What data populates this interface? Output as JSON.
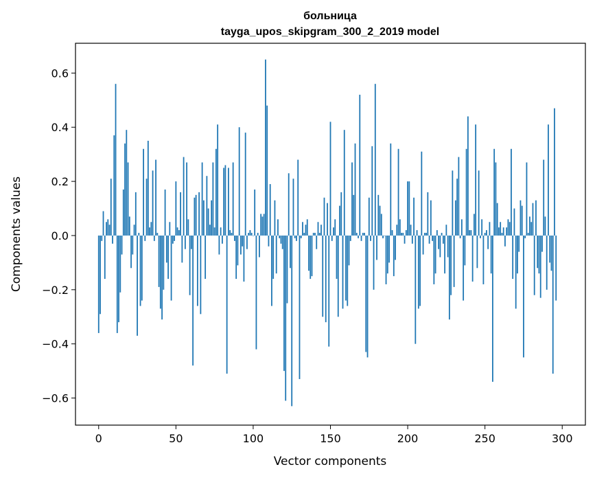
{
  "chart_data": {
    "type": "bar",
    "title": "больница",
    "subtitle": "tayga_upos_skipgram_300_2_2019 model",
    "xlabel": "Vector components",
    "ylabel": "Components values",
    "xlim": [
      -15,
      315
    ],
    "ylim": [
      -0.7,
      0.71
    ],
    "xticks": [
      0,
      50,
      100,
      150,
      200,
      250,
      300
    ],
    "xtick_labels": [
      "0",
      "50",
      "100",
      "150",
      "200",
      "250",
      "300"
    ],
    "yticks": [
      -0.6,
      -0.4,
      -0.2,
      0.0,
      0.2,
      0.4,
      0.6
    ],
    "ytick_labels": [
      "−0.6",
      "−0.4",
      "−0.2",
      "0.0",
      "0.2",
      "0.4",
      "0.6"
    ],
    "grid": false,
    "bar_color": "#1f77b4",
    "values": [
      -0.36,
      -0.29,
      -0.02,
      0.09,
      -0.16,
      0.05,
      0.06,
      0.04,
      0.21,
      -0.03,
      0.37,
      0.56,
      -0.36,
      -0.32,
      -0.21,
      -0.07,
      0.17,
      0.34,
      0.39,
      0.27,
      0.07,
      -0.12,
      -0.07,
      0.04,
      0.16,
      -0.37,
      0.01,
      -0.26,
      -0.24,
      0.32,
      -0.02,
      0.21,
      0.35,
      0.03,
      0.05,
      0.24,
      -0.02,
      0.28,
      0.01,
      -0.19,
      -0.27,
      -0.31,
      -0.2,
      0.17,
      -0.1,
      -0.16,
      0.05,
      -0.24,
      -0.03,
      -0.02,
      0.2,
      0.03,
      0.02,
      0.16,
      -0.1,
      0.29,
      -0.05,
      0.27,
      0.06,
      -0.22,
      -0.05,
      -0.48,
      0.14,
      0.15,
      -0.26,
      0.16,
      -0.29,
      0.27,
      0.13,
      -0.16,
      0.22,
      0.1,
      0.04,
      0.13,
      0.27,
      0.03,
      0.32,
      0.41,
      -0.07,
      0.03,
      -0.03,
      0.25,
      0.26,
      -0.51,
      0.25,
      0.02,
      0.01,
      0.27,
      -0.02,
      -0.16,
      -0.11,
      0.4,
      -0.07,
      -0.04,
      -0.17,
      0.38,
      -0.05,
      0.01,
      0.02,
      0.01,
      0.0,
      0.17,
      -0.42,
      0.01,
      -0.08,
      0.08,
      0.07,
      0.08,
      0.65,
      0.48,
      -0.04,
      0.19,
      -0.26,
      -0.16,
      0.13,
      -0.14,
      0.06,
      -0.01,
      -0.03,
      -0.05,
      -0.5,
      -0.61,
      -0.25,
      0.23,
      -0.12,
      -0.63,
      0.21,
      -0.01,
      -0.02,
      0.28,
      -0.53,
      -0.01,
      0.05,
      0.01,
      0.04,
      0.06,
      -0.13,
      -0.16,
      -0.15,
      0.01,
      0.01,
      -0.05,
      0.05,
      0.01,
      0.04,
      -0.3,
      0.14,
      -0.32,
      0.12,
      -0.41,
      0.42,
      -0.02,
      0.03,
      0.06,
      -0.16,
      -0.3,
      0.11,
      0.16,
      -0.27,
      0.39,
      -0.24,
      -0.26,
      -0.11,
      -0.02,
      0.27,
      0.15,
      0.34,
      0.01,
      -0.01,
      0.52,
      -0.02,
      0.01,
      0.01,
      -0.43,
      -0.45,
      0.14,
      -0.02,
      0.33,
      -0.2,
      0.56,
      -0.09,
      0.15,
      0.11,
      0.08,
      -0.01,
      0.0,
      -0.18,
      -0.14,
      -0.1,
      0.34,
      0.02,
      -0.15,
      -0.09,
      0.04,
      0.32,
      0.06,
      0.01,
      0.01,
      -0.03,
      0.02,
      0.2,
      0.2,
      0.04,
      -0.03,
      0.14,
      -0.4,
      0.02,
      -0.27,
      -0.26,
      0.31,
      -0.07,
      0.01,
      0.01,
      0.16,
      -0.03,
      0.13,
      -0.02,
      -0.18,
      -0.14,
      0.02,
      -0.05,
      -0.08,
      0.01,
      -0.03,
      -0.14,
      0.04,
      -0.08,
      -0.31,
      -0.22,
      0.24,
      -0.19,
      0.13,
      0.21,
      0.29,
      -0.01,
      0.06,
      -0.24,
      -0.11,
      0.32,
      0.44,
      0.02,
      0.02,
      -0.17,
      0.08,
      0.41,
      -0.12,
      0.24,
      -0.01,
      0.06,
      -0.18,
      0.01,
      0.02,
      -0.05,
      0.05,
      -0.14,
      -0.54,
      0.32,
      0.27,
      0.12,
      0.03,
      0.05,
      0.01,
      0.03,
      -0.04,
      0.03,
      0.06,
      0.05,
      0.32,
      -0.16,
      0.1,
      -0.27,
      -0.14,
      -0.06,
      0.13,
      0.11,
      -0.45,
      -0.01,
      0.27,
      0.01,
      0.07,
      0.05,
      0.12,
      -0.22,
      0.13,
      -0.12,
      -0.14,
      -0.23,
      -0.06,
      0.28,
      0.07,
      -0.2,
      0.41,
      -0.1,
      -0.13,
      -0.51,
      0.47,
      -0.24
    ]
  }
}
